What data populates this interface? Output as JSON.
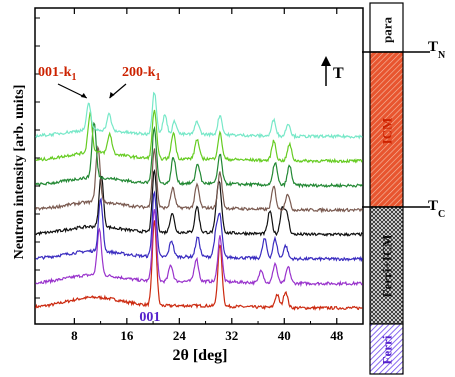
{
  "chart_data": {
    "type": "line",
    "xlabel": "2θ [deg]",
    "ylabel": "Neutron intensity [arb. units]",
    "xlim": [
      2,
      52
    ],
    "xticks": [
      8,
      16,
      24,
      32,
      40,
      48
    ],
    "peak_labels": [
      {
        "text": "001-k",
        "sub": "1",
        "x": 10.2,
        "color": "#cc2200"
      },
      {
        "text": "200-k",
        "sub": "1",
        "x": 13.2,
        "color": "#cc2200"
      },
      {
        "text": "001",
        "x": 20.2,
        "color": "#5522cc"
      }
    ],
    "temperature_arrow_label": "T",
    "series": [
      {
        "color": "#cc2a10",
        "peaks": [
          [
            20.2,
            13
          ],
          [
            30.2,
            9.5
          ],
          [
            38.9,
            2
          ],
          [
            40.2,
            2.5
          ]
        ],
        "hump": 1.6
      },
      {
        "color": "#9933cc",
        "peaks": [
          [
            11.8,
            7
          ],
          [
            20.2,
            11
          ],
          [
            22.7,
            2.5
          ],
          [
            26.6,
            3.5
          ],
          [
            30.2,
            7
          ],
          [
            36.5,
            2
          ],
          [
            38.6,
            3
          ],
          [
            40.6,
            2.5
          ]
        ],
        "hump": 1.3
      },
      {
        "color": "#3a2cc0",
        "peaks": [
          [
            12.0,
            8
          ],
          [
            20.2,
            10
          ],
          [
            22.8,
            2.5
          ],
          [
            26.8,
            3
          ],
          [
            29.6,
            3.5
          ],
          [
            30.2,
            6
          ],
          [
            37.0,
            3
          ],
          [
            38.6,
            3
          ],
          [
            40.2,
            2
          ]
        ],
        "hump": 1.2
      },
      {
        "color": "#111111",
        "peaks": [
          [
            12.1,
            8
          ],
          [
            20.2,
            9.5
          ],
          [
            22.9,
            3
          ],
          [
            26.7,
            4
          ],
          [
            29.8,
            4
          ],
          [
            30.2,
            5.5
          ],
          [
            37.8,
            3.5
          ],
          [
            39.7,
            4
          ],
          [
            40.4,
            3
          ]
        ],
        "hump": 1.2
      },
      {
        "color": "#7a5a50",
        "peaks": [
          [
            11.6,
            8.5
          ],
          [
            20.2,
            9
          ],
          [
            23.0,
            3
          ],
          [
            26.7,
            3.5
          ],
          [
            30.2,
            5.5
          ],
          [
            38.4,
            3.5
          ],
          [
            40.5,
            2.5
          ]
        ],
        "hump": 1.2
      },
      {
        "color": "#228833",
        "peaks": [
          [
            11.0,
            8.5
          ],
          [
            20.2,
            8.5
          ],
          [
            23.1,
            4
          ],
          [
            26.8,
            3
          ],
          [
            30.2,
            4.5
          ],
          [
            38.6,
            3.5
          ],
          [
            40.8,
            3
          ]
        ],
        "hump": 1.2
      },
      {
        "color": "#66cc22",
        "peaks": [
          [
            10.4,
            6
          ],
          [
            13.4,
            3
          ],
          [
            20.2,
            7.5
          ],
          [
            23.1,
            4
          ],
          [
            26.7,
            3
          ],
          [
            30.2,
            4
          ],
          [
            38.4,
            3
          ],
          [
            40.8,
            2.5
          ]
        ],
        "hump": 1.3
      },
      {
        "color": "#77e8c8",
        "peaks": [
          [
            10.2,
            4
          ],
          [
            13.3,
            2.5
          ],
          [
            20.2,
            6.5
          ],
          [
            21.8,
            3
          ],
          [
            23.3,
            2
          ],
          [
            26.7,
            2
          ],
          [
            30.2,
            3
          ],
          [
            38.4,
            2.5
          ],
          [
            40.6,
            2
          ]
        ],
        "hump": 1.0
      }
    ],
    "phase_bar": [
      {
        "label": "para",
        "fill": "#ffffff",
        "label_color": "#111111"
      },
      {
        "label": "ICM",
        "fill": "#e8552f",
        "label_color": "#cc2200"
      },
      {
        "label": "Ferri+ICM",
        "fill": "#555555",
        "label_color": "#111111"
      },
      {
        "label": "Ferri",
        "fill": "#7755ee",
        "label_color": "#5522cc"
      }
    ],
    "boundary_labels": [
      {
        "text": "T",
        "sub": "N"
      },
      {
        "text": "T",
        "sub": "C"
      }
    ]
  }
}
